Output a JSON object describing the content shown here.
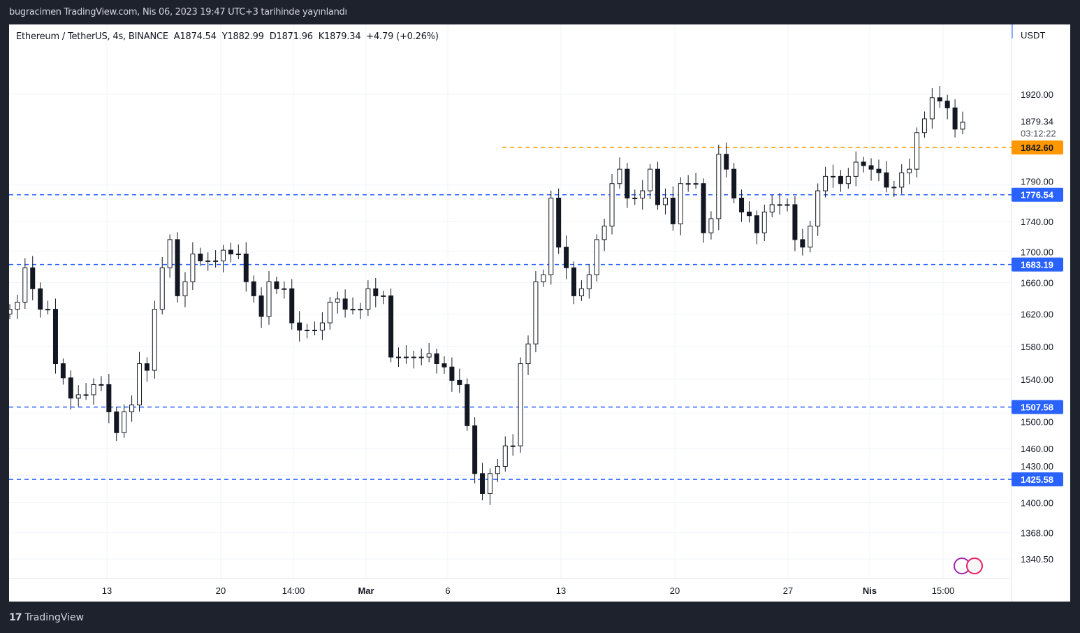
{
  "header": {
    "published": "bugracimen TradingView.com, Nis 06, 2023 19:47 UTC+3 tarihinde yayınlandı"
  },
  "legend": {
    "symbol": "Ethereum / TetherUS, 4s, BINANCE",
    "open": "A1874.54",
    "high": "Y1882.99",
    "low": "D1871.96",
    "close": "K1879.34",
    "change": "+4.79 (+0.26%)"
  },
  "footer": {
    "brand": "TradingView"
  },
  "chart_data": {
    "type": "candlestick",
    "price_scale": "logarithmic",
    "currency": "USDT",
    "ylim": [
      1320,
      2000
    ],
    "grid": true,
    "y_ticks": [
      "1920.00",
      "1790.00",
      "1740.00",
      "1700.00",
      "1660.00",
      "1620.00",
      "1580.00",
      "1540.00",
      "1500.00",
      "1460.00",
      "1430.00",
      "1400.00",
      "1368.00",
      "1340.50"
    ],
    "x_ticks": [
      "13",
      "20",
      "14:00",
      "Mar",
      "6",
      "13",
      "20",
      "27",
      "Nis",
      "15:00"
    ],
    "last_price": {
      "value": "1879.34",
      "countdown": "03:12:22"
    },
    "horizontal_lines": [
      {
        "value": 1842.6,
        "label": "1842.60",
        "color": "#ff9800",
        "start_fraction": 0.52
      },
      {
        "value": 1776.54,
        "label": "1776.54",
        "color": "#2962ff"
      },
      {
        "value": 1683.19,
        "label": "1683.19",
        "color": "#2962ff"
      },
      {
        "value": 1507.58,
        "label": "1507.58",
        "color": "#2962ff"
      },
      {
        "value": 1425.58,
        "label": "1425.58",
        "color": "#2962ff"
      }
    ],
    "closes": [
      1626,
      1635,
      1679,
      1652,
      1626,
      1626,
      1559,
      1542,
      1518,
      1522,
      1522,
      1534,
      1534,
      1502,
      1478,
      1502,
      1510,
      1559,
      1551,
      1626,
      1679,
      1716,
      1643,
      1661,
      1697,
      1688,
      1688,
      1688,
      1702,
      1697,
      1697,
      1661,
      1643,
      1617,
      1661,
      1652,
      1652,
      1609,
      1600,
      1600,
      1600,
      1609,
      1635,
      1639,
      1626,
      1626,
      1626,
      1652,
      1643,
      1643,
      1567,
      1567,
      1567,
      1567,
      1567,
      1571,
      1559,
      1555,
      1539,
      1534,
      1486,
      1432,
      1410,
      1432,
      1440,
      1463,
      1463,
      1559,
      1583,
      1661,
      1670,
      1772,
      1706,
      1679,
      1643,
      1652,
      1670,
      1716,
      1734,
      1792,
      1812,
      1772,
      1772,
      1782,
      1812,
      1763,
      1772,
      1737,
      1792,
      1792,
      1792,
      1725,
      1744,
      1833,
      1812,
      1772,
      1753,
      1748,
      1725,
      1753,
      1763,
      1763,
      1763,
      1716,
      1706,
      1734,
      1782,
      1802,
      1802,
      1792,
      1802,
      1822,
      1817,
      1812,
      1807,
      1787,
      1787,
      1807,
      1812,
      1864,
      1884,
      1915,
      1910,
      1900,
      1869,
      1879
    ]
  }
}
